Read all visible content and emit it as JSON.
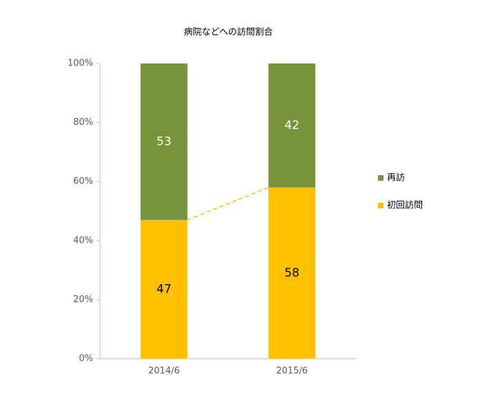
{
  "chart_data": {
    "type": "stacked_bar",
    "title": "病院などへの訪問割合",
    "categories": [
      "2014/6",
      "2015/6"
    ],
    "series": [
      {
        "name": "初回訪問",
        "color": "#ffc000",
        "label_color": "#000000",
        "values": [
          47,
          58
        ]
      },
      {
        "name": "再訪",
        "color": "#77933c",
        "label_color": "#ffffff",
        "values": [
          53,
          42
        ]
      }
    ],
    "ylim": [
      0,
      100
    ],
    "yticks": [
      {
        "value": 0,
        "label": "0%"
      },
      {
        "value": 20,
        "label": "20%"
      },
      {
        "value": 40,
        "label": "40%"
      },
      {
        "value": 60,
        "label": "60%"
      },
      {
        "value": 80,
        "label": "80%"
      },
      {
        "value": 100,
        "label": "100%"
      }
    ],
    "series_lines": true,
    "legend": "right"
  }
}
